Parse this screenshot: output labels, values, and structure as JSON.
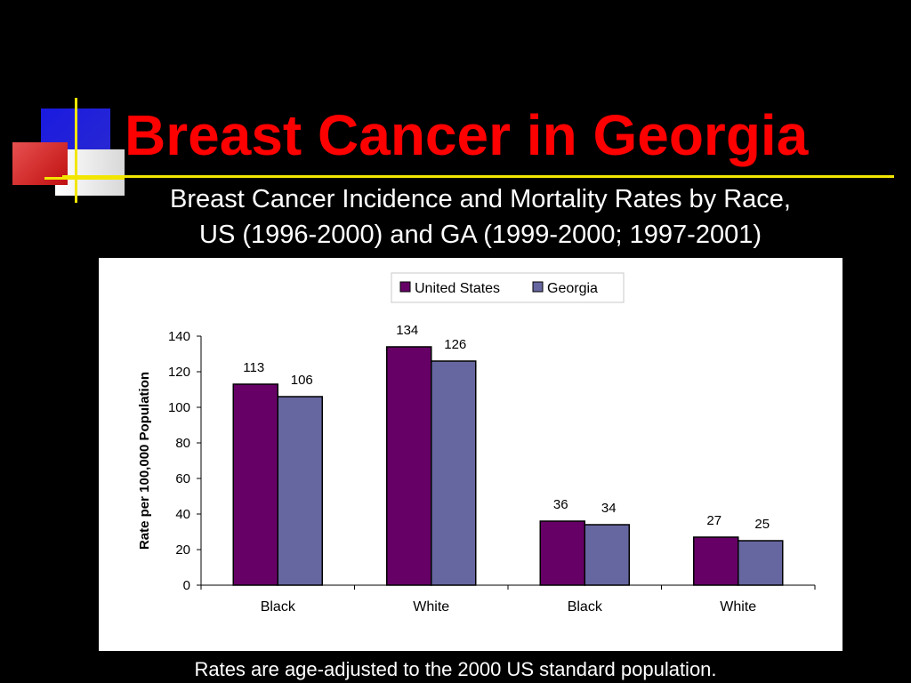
{
  "slide": {
    "title": "Breast Cancer in Georgia",
    "subtitle_line1": "Breast Cancer Incidence and Mortality Rates by Race,",
    "subtitle_line2": "US (1996-2000) and GA (1999-2000; 1997-2001)",
    "footnote": "Rates are age-adjusted to the 2000 US standard population."
  },
  "colors": {
    "background": "#000000",
    "title": "#ff0000",
    "accent_line": "#f2e600",
    "united_states": "#660066",
    "georgia": "#6666a0"
  },
  "chart_data": {
    "type": "bar",
    "categories": [
      "Black",
      "White",
      "Black",
      "White"
    ],
    "series": [
      {
        "name": "United States",
        "values": [
          113,
          134,
          36,
          27
        ]
      },
      {
        "name": "Georgia",
        "values": [
          106,
          126,
          34,
          25
        ]
      }
    ],
    "ylabel": "Rate per 100,000 Population",
    "xlabel": "",
    "ylim": [
      0,
      140
    ],
    "yticks": [
      0,
      20,
      40,
      60,
      80,
      100,
      120,
      140
    ],
    "legend_position": "top",
    "grid": false
  }
}
